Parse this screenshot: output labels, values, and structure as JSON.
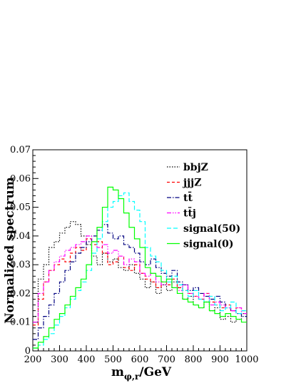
{
  "chart_data": {
    "type": "line",
    "step": true,
    "xlabel_main": "m",
    "xlabel_sub": "φ,r",
    "xlabel_unit": "/GeV",
    "ylabel": "Normalized spectrum",
    "xlim": [
      200,
      1000
    ],
    "ylim": [
      0,
      0.07
    ],
    "xticks": [
      "200",
      "300",
      "400",
      "500",
      "600",
      "700",
      "800",
      "900",
      "1000"
    ],
    "yticks": [
      "0",
      "0.01",
      "0.02",
      "0.03",
      "0.04",
      "0.05",
      "0.06",
      "0.07"
    ],
    "bin_edges": [
      200,
      220,
      240,
      260,
      280,
      300,
      320,
      340,
      360,
      380,
      400,
      420,
      440,
      460,
      480,
      500,
      520,
      540,
      560,
      580,
      600,
      620,
      640,
      660,
      680,
      700,
      720,
      740,
      760,
      780,
      800,
      820,
      840,
      860,
      880,
      900,
      920,
      940,
      960,
      980,
      1000
    ],
    "legend_position": "top-right",
    "series": [
      {
        "name": "bbjZ",
        "color": "#000000",
        "dash": "1.5,2",
        "values": [
          0.012,
          0.025,
          0.03,
          0.036,
          0.038,
          0.041,
          0.043,
          0.045,
          0.044,
          0.04,
          0.037,
          0.033,
          0.03,
          0.034,
          0.031,
          0.032,
          0.029,
          0.028,
          0.03,
          0.027,
          0.025,
          0.022,
          0.024,
          0.02,
          0.023,
          0.021,
          0.024,
          0.022,
          0.018,
          0.019,
          0.016,
          0.015,
          0.017,
          0.014,
          0.015,
          0.011,
          0.012,
          0.01,
          0.011,
          0.013
        ]
      },
      {
        "name": "jjjZ",
        "color": "#ff0000",
        "dash": "4,3",
        "values": [
          0.009,
          0.018,
          0.024,
          0.028,
          0.03,
          0.032,
          0.031,
          0.034,
          0.036,
          0.035,
          0.039,
          0.037,
          0.038,
          0.034,
          0.03,
          0.031,
          0.033,
          0.029,
          0.028,
          0.03,
          0.027,
          0.025,
          0.024,
          0.022,
          0.024,
          0.023,
          0.025,
          0.022,
          0.021,
          0.02,
          0.019,
          0.018,
          0.02,
          0.017,
          0.016,
          0.015,
          0.016,
          0.014,
          0.015,
          0.014
        ]
      },
      {
        "name": "tt̄",
        "color": "#000080",
        "dash": "6,2,1.5,2",
        "values": [
          0.004,
          0.008,
          0.012,
          0.016,
          0.02,
          0.024,
          0.028,
          0.031,
          0.034,
          0.036,
          0.038,
          0.04,
          0.042,
          0.044,
          0.041,
          0.039,
          0.04,
          0.037,
          0.036,
          0.034,
          0.031,
          0.03,
          0.032,
          0.029,
          0.027,
          0.026,
          0.028,
          0.024,
          0.023,
          0.021,
          0.022,
          0.02,
          0.019,
          0.018,
          0.019,
          0.017,
          0.015,
          0.014,
          0.013,
          0.012
        ]
      },
      {
        "name": "tt̄j",
        "color": "#ff00ff",
        "dash": "6,2,1.5,2,1.5,2",
        "values": [
          0.01,
          0.02,
          0.024,
          0.028,
          0.031,
          0.033,
          0.035,
          0.036,
          0.037,
          0.038,
          0.04,
          0.038,
          0.036,
          0.037,
          0.034,
          0.035,
          0.033,
          0.03,
          0.032,
          0.031,
          0.027,
          0.026,
          0.027,
          0.024,
          0.023,
          0.025,
          0.022,
          0.021,
          0.023,
          0.02,
          0.019,
          0.018,
          0.02,
          0.016,
          0.017,
          0.016,
          0.015,
          0.014,
          0.015,
          0.013
        ]
      },
      {
        "name": "signal(50)",
        "color": "#00ffff",
        "dash": "6,3",
        "values": [
          0.001,
          0.002,
          0.004,
          0.006,
          0.009,
          0.012,
          0.015,
          0.018,
          0.021,
          0.024,
          0.028,
          0.034,
          0.039,
          0.045,
          0.05,
          0.052,
          0.054,
          0.055,
          0.052,
          0.049,
          0.045,
          0.036,
          0.033,
          0.031,
          0.028,
          0.024,
          0.026,
          0.023,
          0.021,
          0.019,
          0.021,
          0.018,
          0.017,
          0.019,
          0.016,
          0.014,
          0.015,
          0.017,
          0.013,
          0.014
        ]
      },
      {
        "name": "signal(0)",
        "color": "#00ff00",
        "dash": "",
        "values": [
          0.001,
          0.003,
          0.005,
          0.008,
          0.011,
          0.013,
          0.016,
          0.019,
          0.022,
          0.025,
          0.03,
          0.038,
          0.043,
          0.05,
          0.057,
          0.056,
          0.053,
          0.048,
          0.043,
          0.039,
          0.036,
          0.029,
          0.027,
          0.026,
          0.024,
          0.025,
          0.022,
          0.02,
          0.018,
          0.017,
          0.016,
          0.015,
          0.017,
          0.014,
          0.013,
          0.012,
          0.013,
          0.012,
          0.011,
          0.01
        ]
      }
    ]
  }
}
